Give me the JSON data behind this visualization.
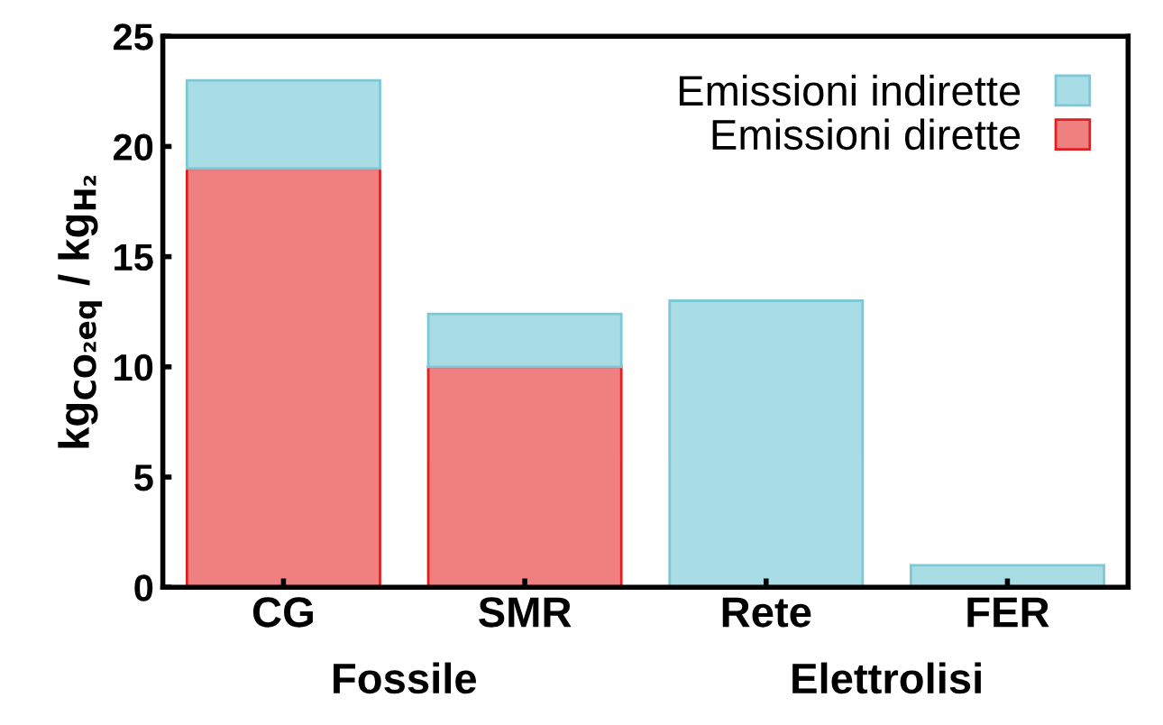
{
  "chart_data": {
    "type": "bar",
    "stacked": true,
    "ylabel": "kg$_{CO₂eq}$ / kg$_{H₂}$",
    "categories": [
      "CG",
      "SMR",
      "Rete",
      "FER"
    ],
    "series": [
      {
        "name": "Emissioni dirette",
        "color": "#f08080",
        "values": [
          19,
          10,
          0,
          0
        ]
      },
      {
        "name": "Emissioni indirette",
        "color": "#a8dde6",
        "values": [
          4,
          2.4,
          13,
          1
        ]
      }
    ],
    "ylim": [
      0,
      25
    ],
    "yticks": [
      0,
      5,
      10,
      15,
      20,
      25
    ],
    "grid": false,
    "legend": "top right",
    "annotations": [
      "Fossile",
      "Elettrolisi"
    ]
  }
}
